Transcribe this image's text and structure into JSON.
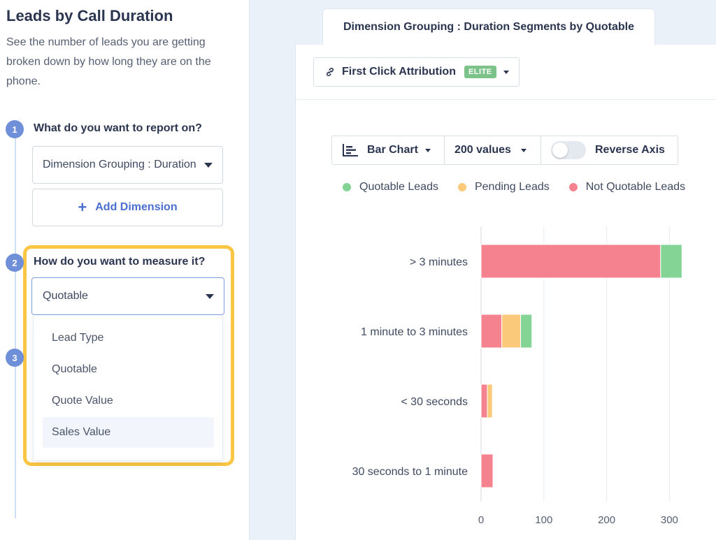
{
  "left": {
    "title": "Leads by Call Duration",
    "description": "See the number of leads you are getting broken down by how long they are on the phone.",
    "steps": [
      {
        "number": "1",
        "question": "What do you want to report on?"
      },
      {
        "number": "2",
        "question": "How do you want to measure it?"
      },
      {
        "number": "3",
        "question": ""
      }
    ],
    "dimension_select": {
      "value": "Dimension Grouping : Duration Segments by Quotable"
    },
    "add_dimension": {
      "label": "Add Dimension",
      "icon": "plus-icon"
    },
    "measure_select": {
      "value": "Quotable"
    },
    "measure_options": [
      "Lead Type",
      "Quotable",
      "Quote Value",
      "Sales Value"
    ],
    "highlight_color": "#fbc545"
  },
  "right": {
    "tab_label": "Dimension Grouping : Duration Segments by Quotable",
    "attribution": {
      "label": "First Click Attribution",
      "badge": "ELITE",
      "icon": "link-icon"
    },
    "toolbar": {
      "chart_type": "Bar Chart",
      "values": "200 values",
      "reverse_axis": "Reverse Axis",
      "reverse_axis_on": false
    }
  },
  "chart_data": {
    "type": "bar",
    "orientation": "horizontal",
    "stacked": true,
    "categories": [
      "> 3 minutes",
      "1 minute to 3 minutes",
      "< 30 seconds",
      "30 seconds to 1 minute"
    ],
    "series": [
      {
        "name": "Not Quotable Leads",
        "color": "#f4838f",
        "values": [
          286,
          33,
          10,
          19
        ]
      },
      {
        "name": "Pending Leads",
        "color": "#fbc97a",
        "values": [
          0,
          30,
          8,
          0
        ]
      },
      {
        "name": "Quotable Leads",
        "color": "#83d495",
        "values": [
          34,
          18,
          0,
          0
        ]
      }
    ],
    "legend_order": [
      "Quotable Leads",
      "Pending Leads",
      "Not Quotable Leads"
    ],
    "xticks": [
      0,
      100,
      200,
      300
    ],
    "xlim": [
      0,
      330
    ],
    "grid": true,
    "legend_position": "top"
  }
}
